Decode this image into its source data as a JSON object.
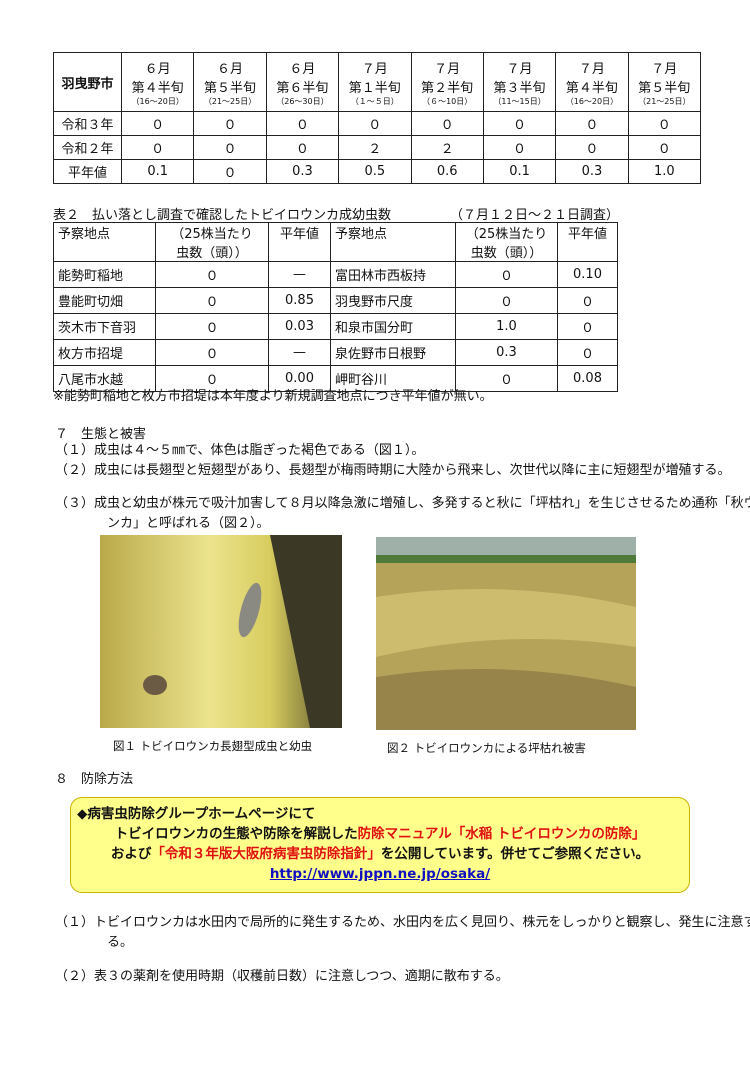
{
  "table1": {
    "corner": "羽曳野市",
    "columns": [
      {
        "month": "６月",
        "period": "第４半旬",
        "days": "（16～20日）"
      },
      {
        "month": "６月",
        "period": "第５半旬",
        "days": "（21～25日）"
      },
      {
        "month": "６月",
        "period": "第６半旬",
        "days": "（26～30日）"
      },
      {
        "month": "７月",
        "period": "第１半旬",
        "days": "（１～５日）"
      },
      {
        "month": "７月",
        "period": "第２半旬",
        "days": "（６～10日）"
      },
      {
        "month": "７月",
        "period": "第３半旬",
        "days": "（11～15日）"
      },
      {
        "month": "７月",
        "period": "第４半旬",
        "days": "（16～20日）"
      },
      {
        "month": "７月",
        "period": "第５半旬",
        "days": "（21～25日）"
      }
    ],
    "rows": [
      {
        "label": "令和３年",
        "values": [
          "０",
          "０",
          "０",
          "０",
          "０",
          "０",
          "０",
          "０"
        ]
      },
      {
        "label": "令和２年",
        "values": [
          "０",
          "０",
          "０",
          "２",
          "２",
          "０",
          "０",
          "０"
        ]
      },
      {
        "label": "平年値",
        "values": [
          "0.1",
          "０",
          "0.3",
          "0.5",
          "0.6",
          "0.1",
          "0.3",
          "1.0"
        ]
      }
    ]
  },
  "table2": {
    "title": "表２　払い落とし調査で確認したトビイロウンカ成幼虫数",
    "period": "（７月１２日～２１日調査）",
    "headers": [
      "予察地点",
      "（25株当たり",
      "虫数（頭））",
      "平年値"
    ],
    "rows": [
      [
        "能勢町稲地",
        "０",
        "—",
        "富田林市西板持",
        "０",
        "0.10"
      ],
      [
        "豊能町切畑",
        "０",
        "0.85",
        "羽曳野市尺度",
        "０",
        "０"
      ],
      [
        "茨木市下音羽",
        "０",
        "0.03",
        "和泉市国分町",
        "1.0",
        "０"
      ],
      [
        "枚方市招堤",
        "０",
        "—",
        "泉佐野市日根野",
        "0.3",
        "０"
      ],
      [
        "八尾市水越",
        "０",
        "0.00",
        "岬町谷川",
        "０",
        "0.08"
      ]
    ],
    "note": "※能勢町稲地と枚方市招堤は本年度より新規調査地点につき平年値が無い。"
  },
  "section7": {
    "title": "７　生態と被害",
    "items": [
      {
        "num": "（１）",
        "text": "成虫は４～５㎜で、体色は脂ぎった褐色である（図１）。"
      },
      {
        "num": "（２）",
        "text": "成虫には長翅型と短翅型があり、長翅型が梅雨時期に大陸から飛来し、次世代以降に主に短翅型が増殖する。"
      },
      {
        "num": "（３）",
        "text": "成虫と幼虫が株元で吸汁加害して８月以降急激に増殖し、多発すると秋に「坪枯れ」を生じさせるため通称「秋ウンカ」と呼ばれる（図２）。"
      }
    ],
    "figures": [
      "図１ トビイロウンカ長翅型成虫と幼虫",
      "図２ トビイロウンカによる坪枯れ被害"
    ]
  },
  "section8": {
    "title": "８　防除方法",
    "notice": {
      "heading": "◆病害虫防除グループホームページにて",
      "intro": "トビイロウンカの生態や防除を解説した",
      "manual": "防除マニュアル「水稲 トビイロウンカの防除」",
      "and": "および",
      "guideline": "「令和３年版大阪府病害虫防除指針」",
      "publish": "を公開しています。併せてご参照ください。",
      "url": "http://www.jppn.ne.jp/osaka/"
    },
    "items": [
      {
        "num": "（１）",
        "text": "トビイロウンカは水田内で局所的に発生するため、水田内を広く見回り、株元をしっかりと観察し、発生に注意する。"
      },
      {
        "num": "（２）",
        "text": "表３の薬剤を使用時期（収穫前日数）に注意しつつ、適期に散布する。"
      }
    ]
  }
}
